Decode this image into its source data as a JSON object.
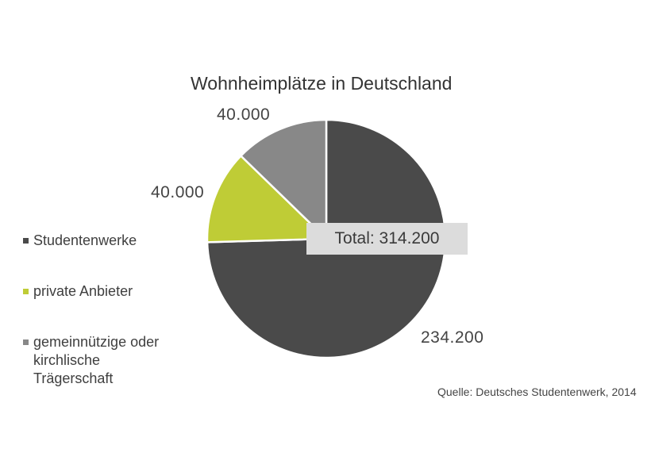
{
  "colors": {
    "dark": "#4a4a4a",
    "green": "#bfcc36",
    "grey": "#888888",
    "total_box": "#dcdcdc"
  },
  "chart_data": {
    "type": "pie",
    "title": "Wohnheimplätze in Deutschland",
    "slices": [
      {
        "name": "Studentenwerke",
        "value": 234200,
        "label": "234.200",
        "color": "#4a4a4a"
      },
      {
        "name": "private Anbieter",
        "value": 40000,
        "label": "40.000",
        "color": "#bfcc36"
      },
      {
        "name": "gemeinnützige oder kirchlische Trägerschaft",
        "value": 40000,
        "label": "40.000",
        "color": "#888888"
      }
    ],
    "total_label": "Total: 314.200",
    "legend": {
      "placement": "left",
      "items": [
        {
          "lines": [
            "Studentenwerke"
          ],
          "color": "#4a4a4a"
        },
        {
          "lines": [
            "private Anbieter"
          ],
          "color": "#bfcc36"
        },
        {
          "lines": [
            "gemeinnützige oder",
            "kirchlische",
            "Trägerschaft"
          ],
          "color": "#888888"
        }
      ]
    },
    "source": "Quelle: Deutsches Studentenwerk, 2014"
  }
}
